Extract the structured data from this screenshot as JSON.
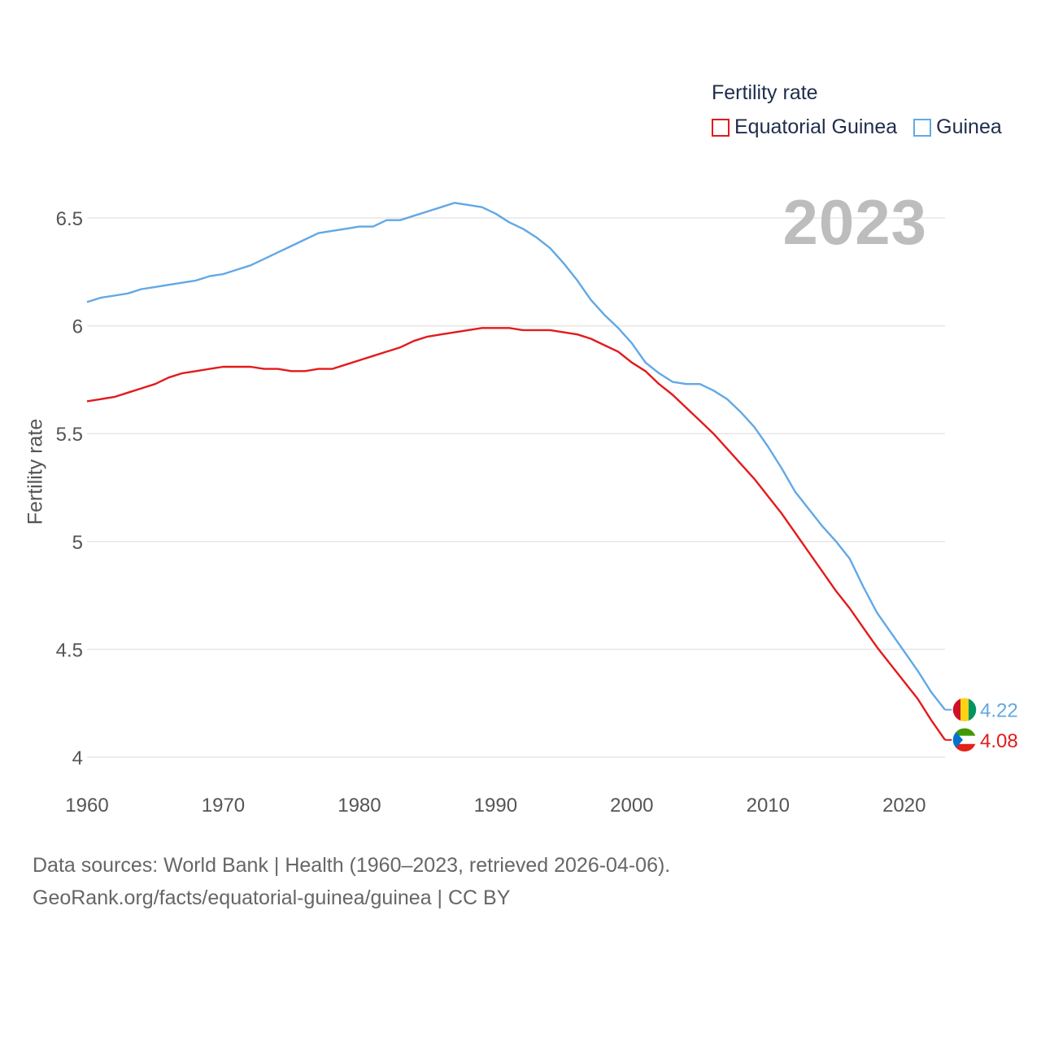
{
  "legend": {
    "title": "Fertility rate",
    "series": [
      {
        "name": "Equatorial Guinea",
        "color": "#e31a1c"
      },
      {
        "name": "Guinea",
        "color": "#62a8e5"
      }
    ]
  },
  "year_badge": "2023",
  "footer": {
    "line1": "Data sources: World Bank | Health (1960–2023, retrieved 2026-04-06).",
    "line2": "GeoRank.org/facts/equatorial-guinea/guinea | CC BY"
  },
  "chart_data": {
    "type": "line",
    "title": "Fertility rate",
    "xlabel": "",
    "ylabel": "Fertility rate",
    "xlim": [
      1960,
      2023
    ],
    "ylim": [
      4,
      6.7
    ],
    "x_ticks": [
      1960,
      1970,
      1980,
      1990,
      2000,
      2010,
      2020
    ],
    "y_ticks": [
      4,
      4.5,
      5,
      5.5,
      6,
      6.5
    ],
    "y_tick_labels": [
      "4",
      "4.5",
      "5",
      "5.5",
      "6",
      "6.5"
    ],
    "grid": true,
    "end_labels": [
      {
        "series": "Guinea",
        "label": "4.22",
        "flag": "guinea-flag-icon"
      },
      {
        "series": "Equatorial Guinea",
        "label": "4.08",
        "flag": "equatorial-guinea-flag-icon"
      }
    ],
    "series": [
      {
        "name": "Equatorial Guinea",
        "color": "#e31a1c",
        "x": [
          1960,
          1961,
          1962,
          1963,
          1964,
          1965,
          1966,
          1967,
          1968,
          1969,
          1970,
          1971,
          1972,
          1973,
          1974,
          1975,
          1976,
          1977,
          1978,
          1979,
          1980,
          1981,
          1982,
          1983,
          1984,
          1985,
          1986,
          1987,
          1988,
          1989,
          1990,
          1991,
          1992,
          1993,
          1994,
          1995,
          1996,
          1997,
          1998,
          1999,
          2000,
          2001,
          2002,
          2003,
          2004,
          2005,
          2006,
          2007,
          2008,
          2009,
          2010,
          2011,
          2012,
          2013,
          2014,
          2015,
          2016,
          2017,
          2018,
          2019,
          2020,
          2021,
          2022,
          2023
        ],
        "values": [
          5.65,
          5.66,
          5.67,
          5.69,
          5.71,
          5.73,
          5.76,
          5.78,
          5.79,
          5.8,
          5.81,
          5.81,
          5.81,
          5.8,
          5.8,
          5.79,
          5.79,
          5.8,
          5.8,
          5.82,
          5.84,
          5.86,
          5.88,
          5.9,
          5.93,
          5.95,
          5.96,
          5.97,
          5.98,
          5.99,
          5.99,
          5.99,
          5.98,
          5.98,
          5.98,
          5.97,
          5.96,
          5.94,
          5.91,
          5.88,
          5.83,
          5.79,
          5.73,
          5.68,
          5.62,
          5.56,
          5.5,
          5.43,
          5.36,
          5.29,
          5.21,
          5.13,
          5.04,
          4.95,
          4.86,
          4.77,
          4.69,
          4.6,
          4.51,
          4.43,
          4.35,
          4.27,
          4.17,
          4.08
        ]
      },
      {
        "name": "Guinea",
        "color": "#62a8e5",
        "x": [
          1960,
          1961,
          1962,
          1963,
          1964,
          1965,
          1966,
          1967,
          1968,
          1969,
          1970,
          1971,
          1972,
          1973,
          1974,
          1975,
          1976,
          1977,
          1978,
          1979,
          1980,
          1981,
          1982,
          1983,
          1984,
          1985,
          1986,
          1987,
          1988,
          1989,
          1990,
          1991,
          1992,
          1993,
          1994,
          1995,
          1996,
          1997,
          1998,
          1999,
          2000,
          2001,
          2002,
          2003,
          2004,
          2005,
          2006,
          2007,
          2008,
          2009,
          2010,
          2011,
          2012,
          2013,
          2014,
          2015,
          2016,
          2017,
          2018,
          2019,
          2020,
          2021,
          2022,
          2023
        ],
        "values": [
          6.11,
          6.13,
          6.14,
          6.15,
          6.17,
          6.18,
          6.19,
          6.2,
          6.21,
          6.23,
          6.24,
          6.26,
          6.28,
          6.31,
          6.34,
          6.37,
          6.4,
          6.43,
          6.44,
          6.45,
          6.46,
          6.46,
          6.49,
          6.49,
          6.51,
          6.53,
          6.55,
          6.57,
          6.56,
          6.55,
          6.52,
          6.48,
          6.45,
          6.41,
          6.36,
          6.29,
          6.21,
          6.12,
          6.05,
          5.99,
          5.92,
          5.83,
          5.78,
          5.74,
          5.73,
          5.73,
          5.7,
          5.66,
          5.6,
          5.53,
          5.44,
          5.34,
          5.23,
          5.15,
          5.07,
          5.0,
          4.92,
          4.79,
          4.67,
          4.58,
          4.49,
          4.4,
          4.3,
          4.22
        ]
      }
    ]
  }
}
